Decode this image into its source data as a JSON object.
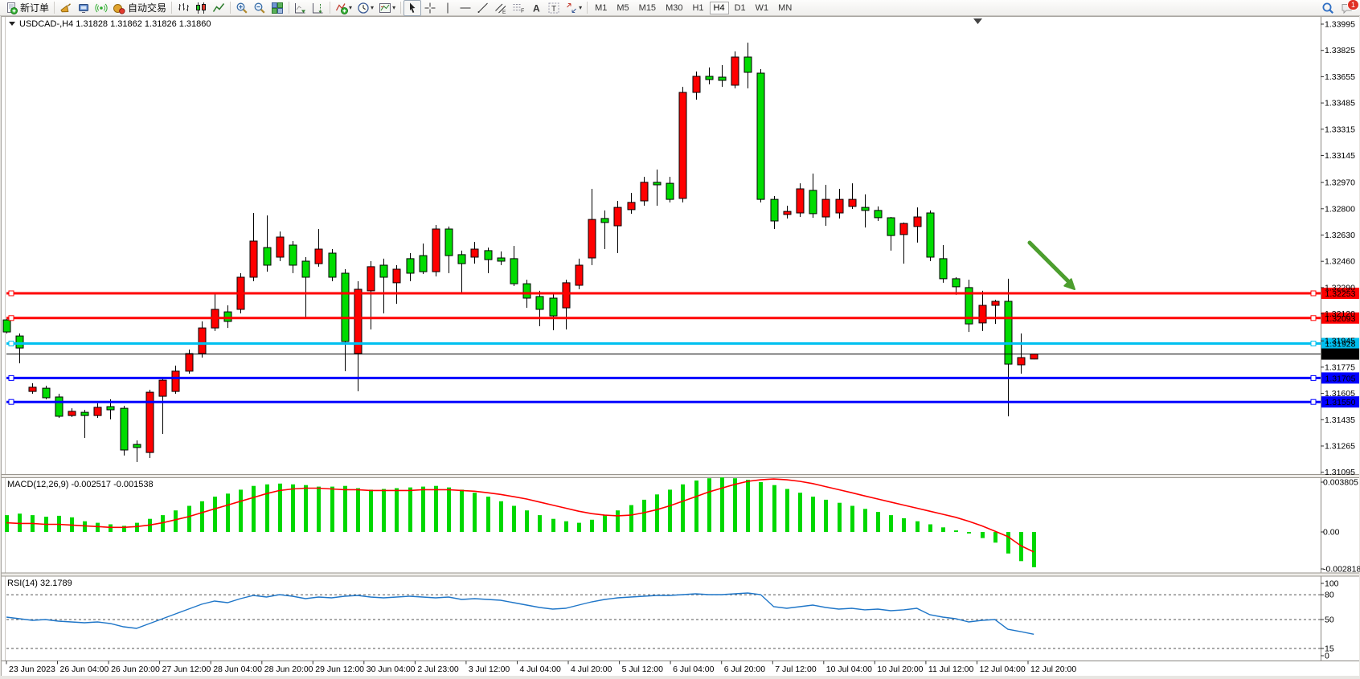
{
  "colors": {
    "candle_up": "#FF0000",
    "candle_down": "#00DC00",
    "macd_hist": "#00D800",
    "macd_signal": "#FF0000",
    "rsi_line": "#1F76C8",
    "arrow": "#4C9E2E",
    "line_red": "#FF0000",
    "line_cyan": "#00C0F0",
    "line_blue": "#0000FF",
    "current_price": "#000000"
  },
  "toolbar": {
    "groups": [
      {
        "name": "trade",
        "buttons": [
          {
            "id": "new-order",
            "icon": "doc-plus",
            "label": "新订单"
          }
        ]
      },
      {
        "name": "services",
        "buttons": [
          {
            "id": "announcement",
            "icon": "horn"
          },
          {
            "id": "market",
            "icon": "monitor"
          },
          {
            "id": "signals",
            "icon": "signal"
          },
          {
            "id": "autotrading",
            "icon": "robot",
            "label": "自动交易"
          }
        ]
      },
      {
        "name": "chart-type",
        "buttons": [
          {
            "id": "bars-chart",
            "icon": "bars"
          },
          {
            "id": "candles-chart",
            "icon": "candles"
          },
          {
            "id": "line-chart",
            "icon": "linechart"
          }
        ]
      },
      {
        "name": "zoom",
        "buttons": [
          {
            "id": "zoom-in",
            "icon": "zoom-in"
          },
          {
            "id": "zoom-out",
            "icon": "zoom-out"
          },
          {
            "id": "tile-windows",
            "icon": "tiles"
          }
        ]
      },
      {
        "name": "scroll",
        "buttons": [
          {
            "id": "auto-scroll",
            "icon": "autoscroll"
          },
          {
            "id": "chart-shift",
            "icon": "chartshift"
          }
        ]
      },
      {
        "name": "insert",
        "buttons": [
          {
            "id": "indicators",
            "icon": "indicator-plus",
            "caret": true
          },
          {
            "id": "periods",
            "icon": "clock",
            "caret": true
          },
          {
            "id": "templates",
            "icon": "template",
            "caret": true
          }
        ]
      },
      {
        "name": "draw",
        "buttons": [
          {
            "id": "cursor",
            "icon": "cursor",
            "active": true
          },
          {
            "id": "crosshair",
            "icon": "crosshair"
          },
          {
            "id": "vline",
            "icon": "vline"
          },
          {
            "id": "hline",
            "icon": "hline"
          },
          {
            "id": "trendline",
            "icon": "trendline"
          },
          {
            "id": "channel",
            "icon": "channel"
          },
          {
            "id": "fibonacci",
            "icon": "fibo"
          },
          {
            "id": "text",
            "icon": "textA"
          },
          {
            "id": "text-label",
            "icon": "textT"
          },
          {
            "id": "arrows",
            "icon": "arrows",
            "caret": true
          }
        ]
      },
      {
        "name": "timeframes",
        "buttons": [
          {
            "id": "tf-m1",
            "label": "M1"
          },
          {
            "id": "tf-m5",
            "label": "M5"
          },
          {
            "id": "tf-m15",
            "label": "M15"
          },
          {
            "id": "tf-m30",
            "label": "M30"
          },
          {
            "id": "tf-h1",
            "label": "H1"
          },
          {
            "id": "tf-h4",
            "label": "H4",
            "active": true
          },
          {
            "id": "tf-d1",
            "label": "D1"
          },
          {
            "id": "tf-w1",
            "label": "W1"
          },
          {
            "id": "tf-mn",
            "label": "MN"
          }
        ]
      }
    ],
    "right": [
      {
        "id": "search",
        "icon": "magnifier"
      },
      {
        "id": "community",
        "icon": "chat",
        "badge": "1"
      }
    ],
    "notifications_badge": "1"
  },
  "chart": {
    "symbol_ohlc": "USDCAD-,H4  1.31828 1.31862 1.31826 1.31860",
    "symbol": "USDCAD-",
    "timeframe": "H4",
    "open": "1.31828",
    "high": "1.31862",
    "low": "1.31826",
    "close": "1.31860"
  },
  "chart_data": {
    "type": "candlestick",
    "title": "USDCAD-,H4",
    "convention": "red-up green-down",
    "price_axis_ticks": [
      "1.33995",
      "1.33825",
      "1.33655",
      "1.33485",
      "1.33315",
      "1.33145",
      "1.32970",
      "1.32800",
      "1.32630",
      "1.32460",
      "1.32290",
      "1.32120",
      "1.31945",
      "1.31775",
      "1.31605",
      "1.31435",
      "1.31265",
      "1.31095"
    ],
    "ylim": [
      1.31095,
      1.33995
    ],
    "time_axis": [
      "23 Jun 2023",
      "26 Jun 04:00",
      "26 Jun 20:00",
      "27 Jun 12:00",
      "28 Jun 04:00",
      "28 Jun 20:00",
      "29 Jun 12:00",
      "30 Jun 04:00",
      "2 Jul 23:00",
      "3 Jul 12:00",
      "4 Jul 04:00",
      "4 Jul 20:00",
      "5 Jul 12:00",
      "6 Jul 04:00",
      "6 Jul 20:00",
      "7 Jul 12:00",
      "10 Jul 04:00",
      "10 Jul 20:00",
      "11 Jul 12:00",
      "12 Jul 04:00",
      "12 Jul 20:00"
    ],
    "candles": [
      [
        1.32081,
        1.32097,
        1.31993,
        1.32003
      ],
      [
        1.31977,
        1.31993,
        1.318,
        1.31899
      ],
      [
        1.31618,
        1.31671,
        1.31603,
        1.31645
      ],
      [
        1.31639,
        1.31655,
        1.31567,
        1.31577
      ],
      [
        1.31582,
        1.31603,
        1.31447,
        1.31457
      ],
      [
        1.31462,
        1.31509,
        1.31452,
        1.31489
      ],
      [
        1.31483,
        1.31499,
        1.31317,
        1.31462
      ],
      [
        1.31462,
        1.31541,
        1.31447,
        1.31515
      ],
      [
        1.3152,
        1.31567,
        1.31437,
        1.31499
      ],
      [
        1.31509,
        1.31525,
        1.31203,
        1.31239
      ],
      [
        1.31275,
        1.31301,
        1.31161,
        1.31255
      ],
      [
        1.31223,
        1.31629,
        1.31187,
        1.31613
      ],
      [
        1.31587,
        1.31707,
        1.31343,
        1.31691
      ],
      [
        1.31618,
        1.31785,
        1.31603,
        1.31749
      ],
      [
        1.31749,
        1.31889,
        1.31733,
        1.31863
      ],
      [
        1.31863,
        1.32071,
        1.31837,
        1.32029
      ],
      [
        1.32029,
        1.32253,
        1.32009,
        1.32149
      ],
      [
        1.32133,
        1.32175,
        1.32029,
        1.32071
      ],
      [
        1.32149,
        1.32383,
        1.32123,
        1.32357
      ],
      [
        1.32357,
        1.32773,
        1.32331,
        1.32591
      ],
      [
        1.32549,
        1.32757,
        1.32393,
        1.32435
      ],
      [
        1.32487,
        1.32653,
        1.32461,
        1.32617
      ],
      [
        1.32565,
        1.32591,
        1.32383,
        1.32435
      ],
      [
        1.32461,
        1.32487,
        1.32097,
        1.32357
      ],
      [
        1.32445,
        1.32669,
        1.32425,
        1.32539
      ],
      [
        1.32513,
        1.32539,
        1.32331,
        1.32357
      ],
      [
        1.32383,
        1.32409,
        1.31749,
        1.31941
      ],
      [
        1.31863,
        1.32331,
        1.31619,
        1.32279
      ],
      [
        1.32269,
        1.32461,
        1.32019,
        1.32425
      ],
      [
        1.32435,
        1.32477,
        1.32123,
        1.32357
      ],
      [
        1.32321,
        1.32435,
        1.32185,
        1.32409
      ],
      [
        1.32477,
        1.32513,
        1.32331,
        1.32383
      ],
      [
        1.32497,
        1.32575,
        1.32378,
        1.32393
      ],
      [
        1.32393,
        1.32695,
        1.32362,
        1.32669
      ],
      [
        1.32669,
        1.32685,
        1.32383,
        1.32497
      ],
      [
        1.32503,
        1.32529,
        1.32253,
        1.32445
      ],
      [
        1.32487,
        1.32586,
        1.32445,
        1.32539
      ],
      [
        1.32529,
        1.32549,
        1.32383,
        1.32471
      ],
      [
        1.32482,
        1.32524,
        1.32435,
        1.32461
      ],
      [
        1.32477,
        1.3256,
        1.323,
        1.32315
      ],
      [
        1.32315,
        1.32341,
        1.32159,
        1.32222
      ],
      [
        1.32232,
        1.32269,
        1.3204,
        1.32149
      ],
      [
        1.32222,
        1.32248,
        1.32014,
        1.32107
      ],
      [
        1.32159,
        1.32341,
        1.32019,
        1.32321
      ],
      [
        1.32305,
        1.32477,
        1.32279,
        1.32435
      ],
      [
        1.32482,
        1.32929,
        1.32435,
        1.32731
      ],
      [
        1.32737,
        1.32789,
        1.32539,
        1.32711
      ],
      [
        1.3269,
        1.32851,
        1.32513,
        1.32809
      ],
      [
        1.32794,
        1.32903,
        1.32768,
        1.32841
      ],
      [
        1.32851,
        1.33007,
        1.3282,
        1.32971
      ],
      [
        1.32971,
        1.33054,
        1.3282,
        1.32955
      ],
      [
        1.32965,
        1.33007,
        1.32841,
        1.32861
      ],
      [
        1.32867,
        1.33589,
        1.32841,
        1.33553
      ],
      [
        1.33553,
        1.33688,
        1.33506,
        1.33657
      ],
      [
        1.33657,
        1.33714,
        1.33605,
        1.33636
      ],
      [
        1.33652,
        1.3373,
        1.33589,
        1.33631
      ],
      [
        1.336,
        1.33818,
        1.33579,
        1.33782
      ],
      [
        1.33782,
        1.33875,
        1.33579,
        1.33683
      ],
      [
        1.33678,
        1.33704,
        1.32841,
        1.32861
      ],
      [
        1.32861,
        1.32882,
        1.32669,
        1.32721
      ],
      [
        1.32763,
        1.3282,
        1.32737,
        1.32783
      ],
      [
        1.32773,
        1.32965,
        1.32747,
        1.32929
      ],
      [
        1.32919,
        1.33028,
        1.32742,
        1.32768
      ],
      [
        1.32747,
        1.32955,
        1.3269,
        1.32861
      ],
      [
        1.32773,
        1.32929,
        1.32737,
        1.32861
      ],
      [
        1.32815,
        1.32965,
        1.32799,
        1.32861
      ],
      [
        1.32809,
        1.32893,
        1.32679,
        1.32789
      ],
      [
        1.32789,
        1.32815,
        1.32721,
        1.32742
      ],
      [
        1.32742,
        1.32747,
        1.32529,
        1.32627
      ],
      [
        1.32633,
        1.32711,
        1.32445,
        1.32705
      ],
      [
        1.32685,
        1.32809,
        1.32581,
        1.32747
      ],
      [
        1.32773,
        1.32789,
        1.32461,
        1.32487
      ],
      [
        1.32477,
        1.32565,
        1.32321,
        1.32347
      ],
      [
        1.32347,
        1.32357,
        1.32243,
        1.32295
      ],
      [
        1.3229,
        1.32341,
        1.32003,
        1.32055
      ],
      [
        1.32061,
        1.32269,
        1.32009,
        1.32175
      ],
      [
        1.32175,
        1.32211,
        1.32055,
        1.32201
      ],
      [
        1.32201,
        1.32347,
        1.31457,
        1.31795
      ],
      [
        1.3179,
        1.31993,
        1.31733,
        1.31837
      ],
      [
        1.31828,
        1.31862,
        1.31826,
        1.3186
      ]
    ],
    "hlines": [
      {
        "price": 1.32253,
        "label": "1.32253",
        "color": "#FF0000"
      },
      {
        "price": 1.32093,
        "label": "1.32093",
        "color": "#FF0000"
      },
      {
        "price": 1.31928,
        "label": "1.31928",
        "color": "#00C0F0"
      },
      {
        "price": 1.31705,
        "label": "1.31705",
        "color": "#0000FF"
      },
      {
        "price": 1.3155,
        "label": "1.31550",
        "color": "#0000FF"
      }
    ],
    "current_price": {
      "price": 1.3186,
      "label": "1.31860"
    },
    "annotations": [
      {
        "type": "arrow",
        "direction": "down-right",
        "color": "#4C9E2E",
        "points_to_price": 1.32253
      }
    ],
    "macd": {
      "text": "MACD(12,26,9) -0.002517 -0.001538",
      "label": "MACD(12,26,9)",
      "main_value": "-0.002517",
      "signal_value": "-0.001538",
      "axis": [
        "0.003805",
        "0.00",
        "-0.002818"
      ],
      "hist": [
        0.00121,
        0.00132,
        0.00121,
        0.0011,
        0.00116,
        0.00105,
        0.00077,
        0.00066,
        0.00055,
        0.00044,
        0.00066,
        0.00094,
        0.00121,
        0.00155,
        0.00188,
        0.00221,
        0.00254,
        0.00276,
        0.00304,
        0.00331,
        0.00342,
        0.00348,
        0.00342,
        0.00337,
        0.00326,
        0.00326,
        0.00331,
        0.00315,
        0.00304,
        0.00309,
        0.00315,
        0.0032,
        0.00326,
        0.00331,
        0.0032,
        0.00304,
        0.00282,
        0.00254,
        0.00221,
        0.00188,
        0.00155,
        0.00121,
        0.00094,
        0.00077,
        0.00066,
        0.00088,
        0.00121,
        0.00155,
        0.00193,
        0.00232,
        0.0027,
        0.00304,
        0.00342,
        0.0037,
        0.00386,
        0.00392,
        0.00386,
        0.00375,
        0.00359,
        0.00337,
        0.00309,
        0.00282,
        0.00254,
        0.00232,
        0.0021,
        0.00188,
        0.00166,
        0.00144,
        0.00121,
        0.00099,
        0.00077,
        0.00055,
        0.00033,
        0.00011,
        -0.00011,
        -0.00044,
        -0.00077,
        -0.00155,
        -0.0021,
        -0.00254
      ],
      "signal": [
        0.00066,
        0.00061,
        0.00061,
        0.00055,
        0.00055,
        0.0005,
        0.00044,
        0.00039,
        0.00033,
        0.00033,
        0.00039,
        0.0005,
        0.00066,
        0.00088,
        0.0011,
        0.00138,
        0.00166,
        0.00193,
        0.00221,
        0.00248,
        0.00276,
        0.00298,
        0.00309,
        0.00315,
        0.00315,
        0.00309,
        0.00304,
        0.00304,
        0.00298,
        0.00298,
        0.00298,
        0.00298,
        0.00304,
        0.00304,
        0.00304,
        0.00298,
        0.00293,
        0.00282,
        0.0027,
        0.00254,
        0.00237,
        0.00215,
        0.00193,
        0.00171,
        0.00149,
        0.00132,
        0.00121,
        0.00116,
        0.00121,
        0.00138,
        0.0016,
        0.00188,
        0.00221,
        0.00254,
        0.00287,
        0.00315,
        0.00342,
        0.00364,
        0.00375,
        0.00381,
        0.00375,
        0.00364,
        0.00348,
        0.00326,
        0.00304,
        0.00282,
        0.00259,
        0.00237,
        0.00215,
        0.00193,
        0.00171,
        0.00149,
        0.00127,
        0.00105,
        0.00077,
        0.00044,
        6e-05,
        -0.00033,
        -0.00099,
        -0.00144
      ]
    },
    "rsi": {
      "text": "RSI(14) 32.1789",
      "label": "RSI(14)",
      "last_value": "32.1789",
      "axis": [
        "100",
        "80",
        "50",
        "15",
        "0"
      ],
      "dashed_levels": [
        80,
        50,
        15
      ],
      "values": [
        52.9,
        51.0,
        49.0,
        50.0,
        48.1,
        47.1,
        46.1,
        47.1,
        45.1,
        41.3,
        39.3,
        45.1,
        51.0,
        56.8,
        62.6,
        68.4,
        72.3,
        70.4,
        75.2,
        79.1,
        77.2,
        80.1,
        78.2,
        75.2,
        77.2,
        76.2,
        78.2,
        79.1,
        77.2,
        76.2,
        77.2,
        78.2,
        77.2,
        76.2,
        77.2,
        74.3,
        75.2,
        74.3,
        73.3,
        70.4,
        67.5,
        64.6,
        62.6,
        63.6,
        67.5,
        71.4,
        74.3,
        76.2,
        77.2,
        78.2,
        79.1,
        79.1,
        80.1,
        81.1,
        80.1,
        80.1,
        81.1,
        82.0,
        80.1,
        65.5,
        63.6,
        65.5,
        67.5,
        64.6,
        62.6,
        63.6,
        61.7,
        62.6,
        60.7,
        61.7,
        63.6,
        55.8,
        52.9,
        51.0,
        47.1,
        49.0,
        50.0,
        38.3,
        35.4,
        32.2
      ]
    }
  }
}
